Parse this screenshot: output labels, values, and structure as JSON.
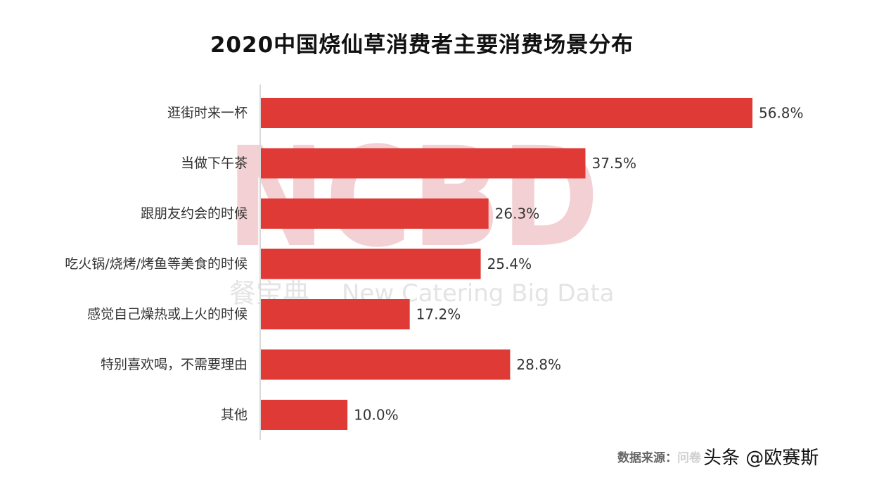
{
  "brand": {
    "watermark_letters": "NCBD",
    "watermark_cn": "餐宝典",
    "watermark_en": "New Catering Big Data"
  },
  "footer": {
    "source_label": "数据来源：",
    "source_text": "问卷",
    "credit": "头条 @欧赛斯"
  },
  "colors": {
    "bar": "#e03a36",
    "axis": "#d9d9d9",
    "text": "#333333"
  },
  "chart_data": {
    "type": "bar",
    "orientation": "horizontal",
    "title": "2020中国烧仙草消费者主要消费场景分布",
    "categories": [
      "逛街时来一杯",
      "当做下午茶",
      "跟朋友约会的时候",
      "吃火锅/烧烤/烤鱼等美食的时候",
      "感觉自己燥热或上火的时候",
      "特别喜欢喝，不需要理由",
      "其他"
    ],
    "values": [
      56.8,
      37.5,
      26.3,
      25.4,
      17.2,
      28.8,
      10.0
    ],
    "labels": [
      "56.8%",
      "37.5%",
      "26.3%",
      "25.4%",
      "17.2%",
      "28.8%",
      "10.0%"
    ],
    "unit": "%",
    "xlim": [
      0,
      56.8
    ],
    "grid": false,
    "legend": "none"
  }
}
